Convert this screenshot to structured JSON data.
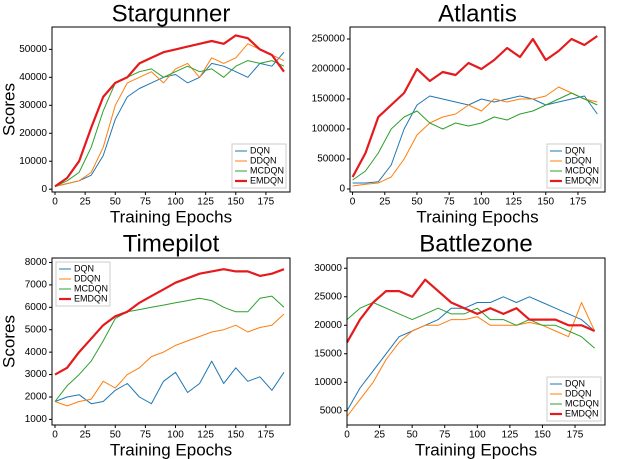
{
  "chart_data": [
    {
      "type": "line",
      "title": "Stargunner",
      "x_label": "Training Epochs",
      "y_label": "Scores",
      "legend": "lower right",
      "grid": false,
      "x": [
        0,
        10,
        20,
        30,
        40,
        50,
        60,
        70,
        80,
        90,
        100,
        110,
        120,
        130,
        140,
        150,
        160,
        170,
        180,
        190
      ],
      "xlim": [
        -2.5,
        195
      ],
      "xticks": [
        0,
        25,
        50,
        75,
        100,
        125,
        150,
        175
      ],
      "ylim": [
        -1000,
        58000
      ],
      "yticks": [
        0,
        10000,
        20000,
        30000,
        40000,
        50000
      ],
      "series": [
        {
          "name": "DQN",
          "color": "#1f77b4",
          "values": [
            1000,
            2000,
            3000,
            5000,
            12000,
            25000,
            33000,
            36000,
            38000,
            40000,
            41000,
            38000,
            40000,
            45000,
            44000,
            42000,
            40000,
            45000,
            44000,
            49000
          ]
        },
        {
          "name": "DDQN",
          "color": "#ff7f0e",
          "values": [
            1000,
            2000,
            3000,
            6000,
            15000,
            30000,
            38000,
            40000,
            42000,
            38000,
            43000,
            45000,
            40000,
            47000,
            45000,
            47000,
            52000,
            50000,
            48000,
            46000
          ]
        },
        {
          "name": "MCDQN",
          "color": "#2ca02c",
          "values": [
            1000,
            3000,
            6000,
            15000,
            28000,
            38000,
            40000,
            42000,
            43000,
            40000,
            42000,
            44000,
            42000,
            43000,
            40000,
            44000,
            46000,
            45000,
            46000,
            44000
          ]
        },
        {
          "name": "EMDQN",
          "color": "#e41a1c",
          "values": [
            1000,
            4000,
            10000,
            22000,
            33000,
            38000,
            40000,
            45000,
            47000,
            49000,
            50000,
            51000,
            52000,
            53000,
            52000,
            55000,
            54000,
            50000,
            48000,
            42000
          ]
        }
      ]
    },
    {
      "type": "line",
      "title": "Atlantis",
      "x_label": "Training Epochs",
      "legend": "lower right",
      "grid": false,
      "x": [
        0,
        10,
        20,
        30,
        40,
        50,
        60,
        70,
        80,
        90,
        100,
        110,
        120,
        130,
        140,
        150,
        160,
        170,
        180,
        190
      ],
      "xlim": [
        -2,
        196
      ],
      "xticks": [
        0,
        25,
        50,
        75,
        100,
        125,
        150,
        175
      ],
      "ylim": [
        -5000,
        270000
      ],
      "yticks": [
        0,
        50000,
        100000,
        150000,
        200000,
        250000
      ],
      "series": [
        {
          "name": "DQN",
          "color": "#1f77b4",
          "values": [
            10000,
            10000,
            12000,
            40000,
            100000,
            140000,
            155000,
            150000,
            145000,
            140000,
            150000,
            145000,
            150000,
            155000,
            150000,
            140000,
            145000,
            150000,
            155000,
            125000
          ]
        },
        {
          "name": "DDQN",
          "color": "#ff7f0e",
          "values": [
            5000,
            8000,
            10000,
            20000,
            50000,
            90000,
            110000,
            120000,
            125000,
            140000,
            130000,
            150000,
            145000,
            150000,
            150000,
            155000,
            170000,
            160000,
            150000,
            145000
          ]
        },
        {
          "name": "MCDQN",
          "color": "#2ca02c",
          "values": [
            15000,
            30000,
            60000,
            100000,
            120000,
            130000,
            110000,
            100000,
            110000,
            105000,
            110000,
            120000,
            115000,
            125000,
            130000,
            140000,
            150000,
            160000,
            150000,
            140000
          ]
        },
        {
          "name": "EMDQN",
          "color": "#e41a1c",
          "values": [
            20000,
            60000,
            120000,
            140000,
            160000,
            200000,
            180000,
            195000,
            190000,
            210000,
            200000,
            215000,
            235000,
            220000,
            250000,
            215000,
            230000,
            250000,
            240000,
            255000
          ]
        }
      ]
    },
    {
      "type": "line",
      "title": "Timepilot",
      "x_label": "Training Epochs",
      "y_label": "Scores",
      "legend": "upper left",
      "grid": false,
      "x": [
        0,
        10,
        20,
        30,
        40,
        50,
        60,
        70,
        80,
        90,
        100,
        110,
        120,
        130,
        140,
        150,
        160,
        170,
        180,
        190
      ],
      "xlim": [
        -2.5,
        195
      ],
      "xticks": [
        0,
        25,
        50,
        75,
        100,
        125,
        150,
        175
      ],
      "ylim": [
        750,
        8200
      ],
      "yticks": [
        1000,
        2000,
        3000,
        4000,
        5000,
        6000,
        7000,
        8000
      ],
      "series": [
        {
          "name": "DQN",
          "color": "#1f77b4",
          "values": [
            1800,
            2000,
            2100,
            1700,
            1800,
            2300,
            2600,
            2000,
            1700,
            2700,
            3100,
            2200,
            2600,
            3600,
            2600,
            3300,
            2700,
            2900,
            2300,
            3100
          ]
        },
        {
          "name": "DDQN",
          "color": "#ff7f0e",
          "values": [
            1800,
            1600,
            1800,
            1900,
            2700,
            2400,
            3000,
            3300,
            3800,
            4000,
            4300,
            4500,
            4700,
            4900,
            5000,
            5200,
            4900,
            5100,
            5200,
            5700
          ]
        },
        {
          "name": "MCDQN",
          "color": "#2ca02c",
          "values": [
            1800,
            2500,
            3000,
            3600,
            4500,
            5500,
            5800,
            5900,
            6000,
            6100,
            6200,
            6300,
            6400,
            6300,
            6000,
            5800,
            5800,
            6400,
            6500,
            6000
          ]
        },
        {
          "name": "EMDQN",
          "color": "#e41a1c",
          "values": [
            3000,
            3300,
            4000,
            4600,
            5200,
            5600,
            5800,
            6200,
            6500,
            6800,
            7100,
            7300,
            7500,
            7600,
            7700,
            7600,
            7600,
            7400,
            7500,
            7700
          ]
        }
      ]
    },
    {
      "type": "line",
      "title": "Battlezone",
      "x_label": "Training Epochs",
      "legend": "lower right",
      "grid": false,
      "x": [
        0,
        10,
        20,
        30,
        40,
        50,
        60,
        70,
        80,
        90,
        100,
        110,
        120,
        130,
        140,
        150,
        160,
        170,
        180,
        190
      ],
      "xlim": [
        0,
        198
      ],
      "xticks": [
        0,
        25,
        50,
        75,
        100,
        125,
        150,
        175
      ],
      "ylim": [
        2500,
        31800
      ],
      "yticks": [
        5000,
        10000,
        15000,
        20000,
        25000,
        30000
      ],
      "series": [
        {
          "name": "DQN",
          "color": "#1f77b4",
          "values": [
            5000,
            9000,
            12000,
            15000,
            18000,
            19000,
            20000,
            21000,
            23000,
            23000,
            24000,
            24000,
            25000,
            24000,
            25000,
            24000,
            23000,
            22000,
            21000,
            19000
          ]
        },
        {
          "name": "DDQN",
          "color": "#ff7f0e",
          "values": [
            4000,
            7000,
            10000,
            14000,
            17000,
            19000,
            20000,
            20000,
            21000,
            21000,
            21500,
            20000,
            20000,
            20000,
            20500,
            20000,
            19000,
            18000,
            24000,
            19000
          ]
        },
        {
          "name": "MCDQN",
          "color": "#2ca02c",
          "values": [
            21000,
            23000,
            24000,
            23000,
            22000,
            21000,
            22000,
            23000,
            22000,
            22000,
            23000,
            21000,
            21000,
            20000,
            21000,
            20000,
            20000,
            19000,
            18000,
            16000
          ]
        },
        {
          "name": "EMDQN",
          "color": "#e41a1c",
          "values": [
            17000,
            21000,
            24000,
            26000,
            26000,
            25000,
            28000,
            26000,
            24000,
            23000,
            22000,
            23000,
            22000,
            23000,
            21000,
            21000,
            21000,
            20000,
            20000,
            19000
          ]
        }
      ]
    }
  ]
}
